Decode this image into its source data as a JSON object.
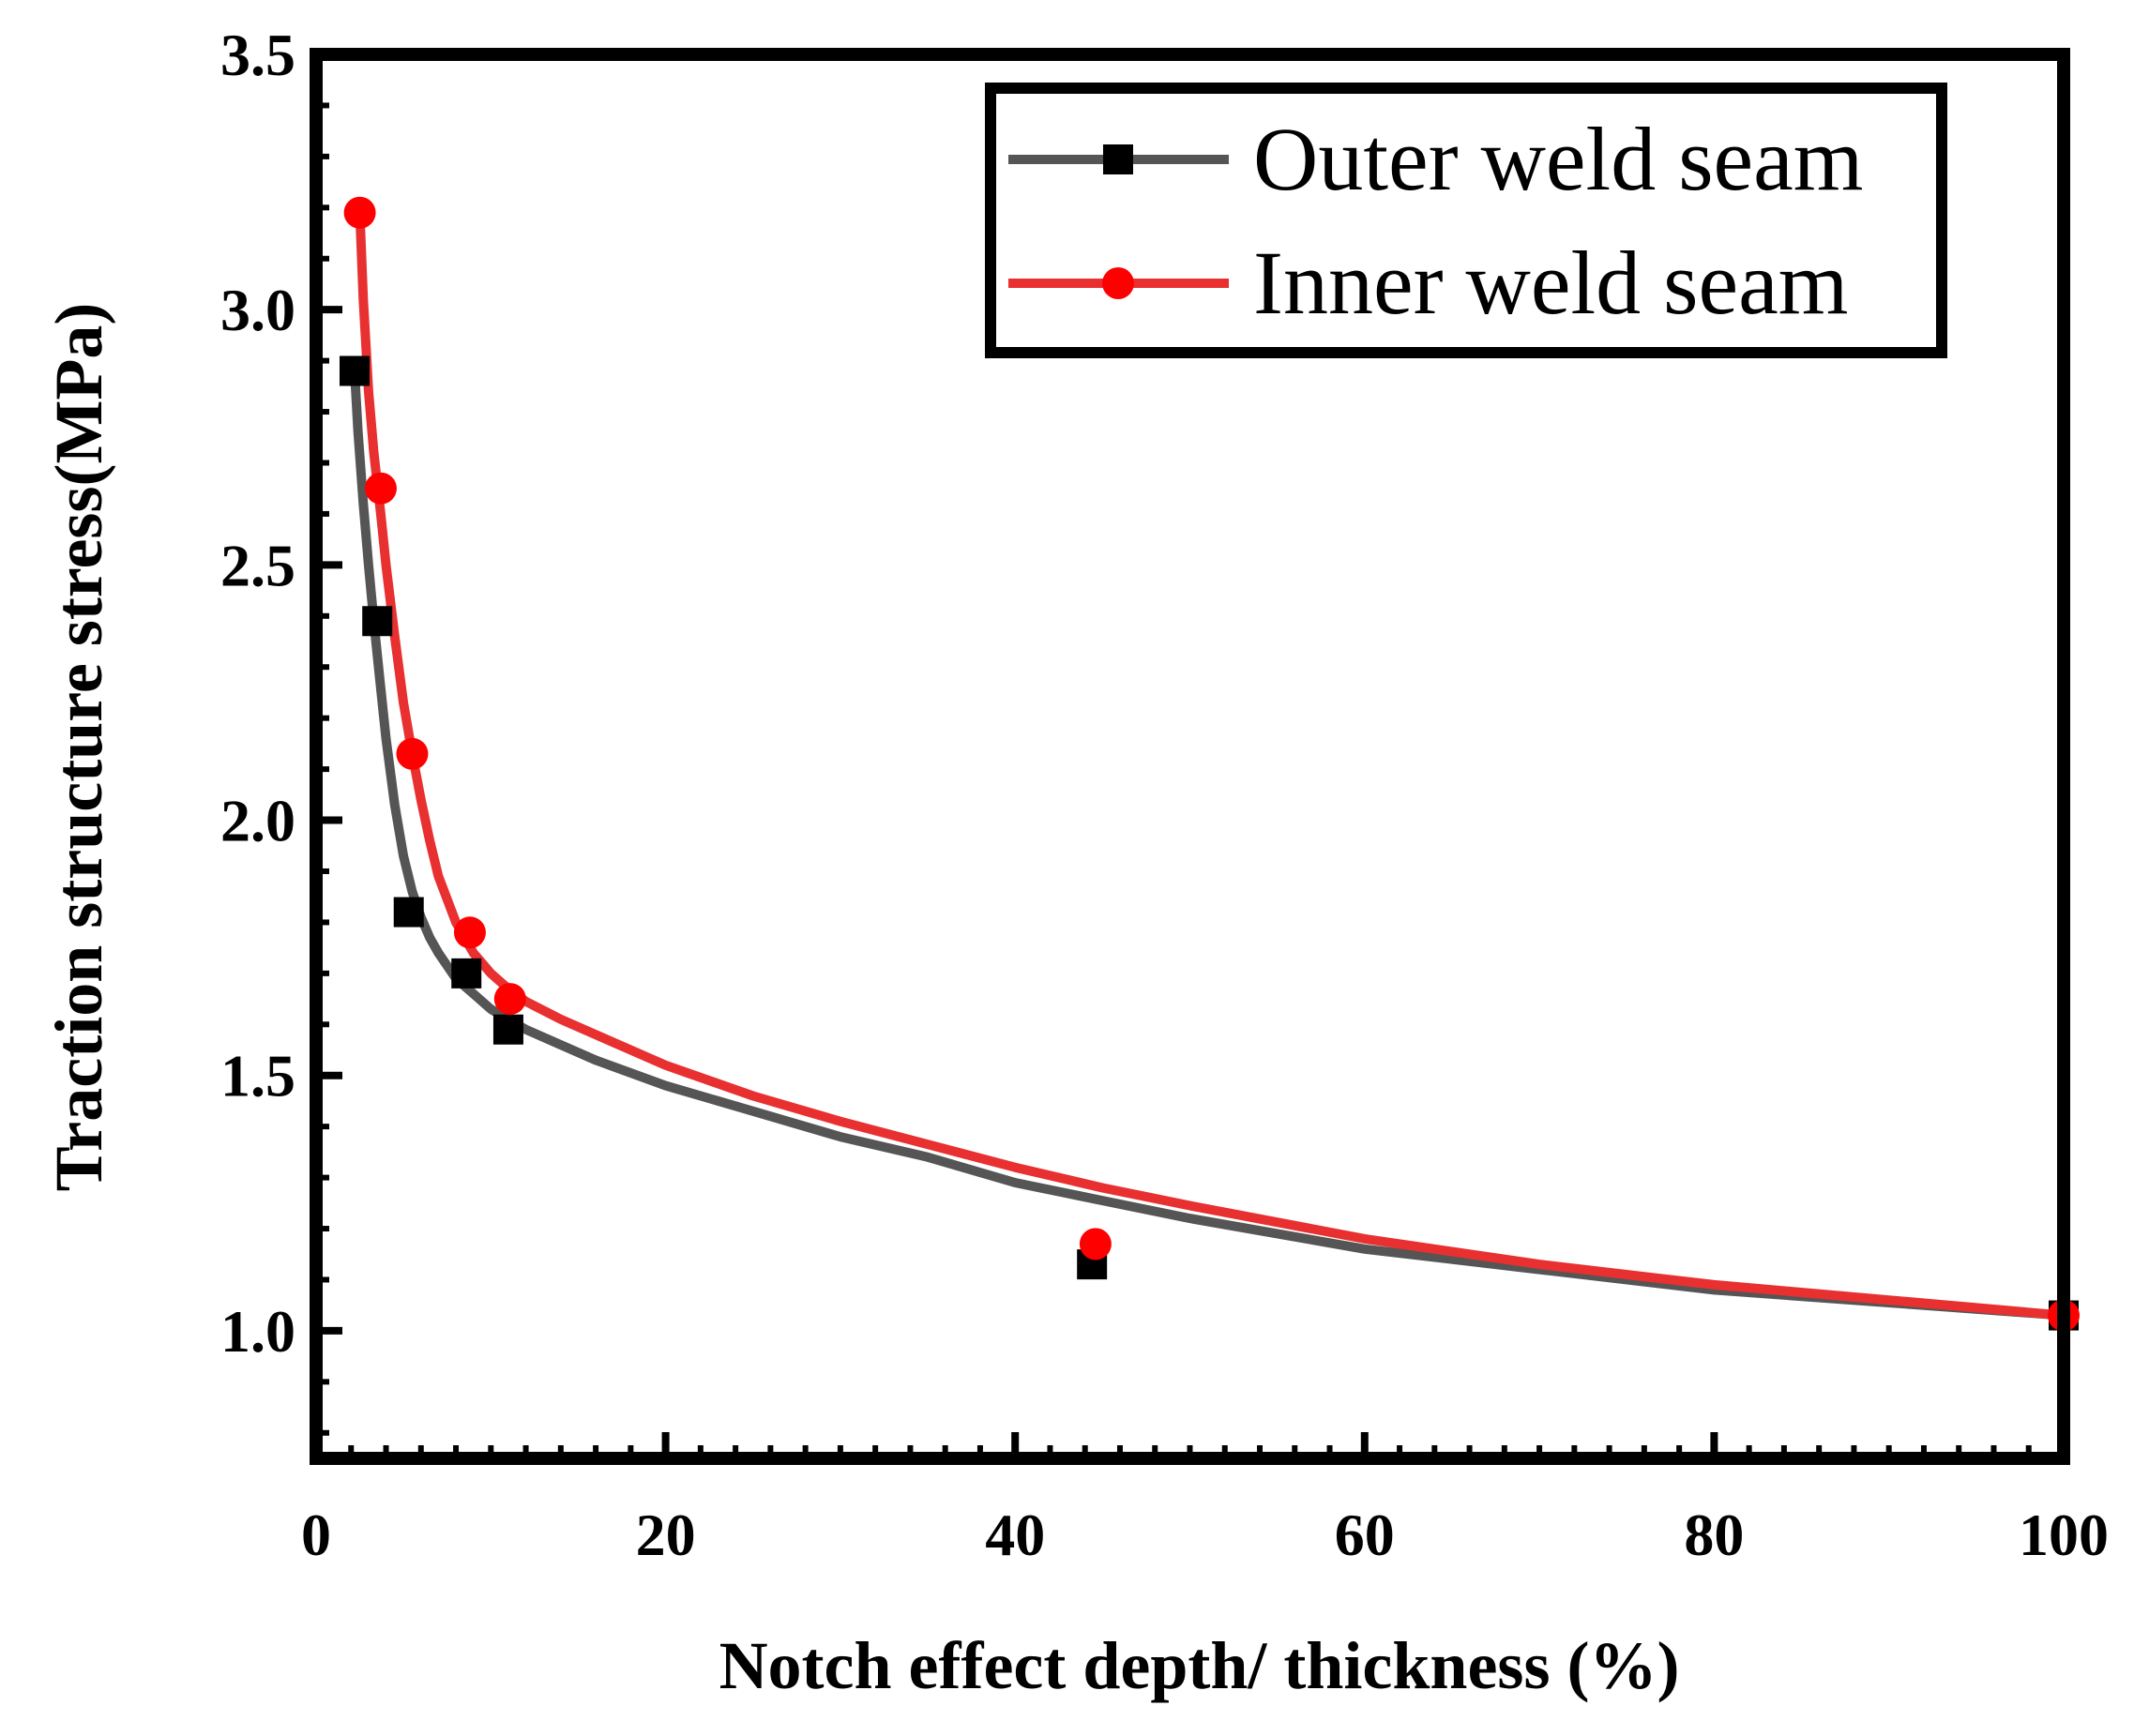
{
  "chart_data": {
    "type": "line",
    "title": "",
    "xlabel": "Notch effect depth/ thickness (%)",
    "ylabel": "Traction structure stress(MPa)",
    "xlim": [
      0,
      100
    ],
    "ylim": [
      0.75,
      3.5
    ],
    "xticks": [
      0,
      20,
      40,
      60,
      80,
      100
    ],
    "xtick_labels": [
      "0",
      "20",
      "40",
      "60",
      "80",
      "100"
    ],
    "yticks": [
      1.0,
      1.5,
      2.0,
      2.5,
      3.0,
      3.5
    ],
    "ytick_labels": [
      "1.0",
      "1.5",
      "2.0",
      "2.5",
      "3.0",
      "3.5"
    ],
    "legend_position": "top-right",
    "series": [
      {
        "name": "Outer weld seam",
        "color": "#000000",
        "line_color": "#555555",
        "marker": "square",
        "x": [
          2.2,
          3.5,
          5.3,
          8.6,
          11.0,
          44.4,
          100.0
        ],
        "values": [
          2.88,
          2.39,
          1.82,
          1.7,
          1.59,
          1.13,
          1.03
        ],
        "fit_x": [
          2.2,
          2.4,
          2.7,
          3.0,
          3.3,
          3.6,
          4.0,
          4.5,
          5.0,
          5.5,
          6.0,
          6.5,
          7.0,
          8.0,
          9.0,
          10.0,
          11.0,
          12.0,
          14.0,
          16.0,
          20.0,
          25.0,
          30.0,
          35.0,
          40.0,
          45.0,
          50.0,
          60.0,
          70.0,
          80.0,
          90.0,
          100.0
        ],
        "fit_y": [
          2.88,
          2.76,
          2.62,
          2.5,
          2.39,
          2.29,
          2.16,
          2.03,
          1.93,
          1.86,
          1.81,
          1.77,
          1.74,
          1.69,
          1.66,
          1.63,
          1.61,
          1.59,
          1.56,
          1.53,
          1.48,
          1.43,
          1.38,
          1.34,
          1.29,
          1.255,
          1.22,
          1.16,
          1.12,
          1.08,
          1.055,
          1.03
        ]
      },
      {
        "name": "Inner weld seam",
        "color": "#ff0000",
        "line_color": "#e83030",
        "marker": "circle",
        "x": [
          2.5,
          3.7,
          5.5,
          8.8,
          11.1,
          44.6,
          100.0
        ],
        "values": [
          3.19,
          2.65,
          2.13,
          1.78,
          1.65,
          1.17,
          1.03
        ],
        "fit_x": [
          2.5,
          2.7,
          3.0,
          3.3,
          3.7,
          4.0,
          4.5,
          5.0,
          5.5,
          6.0,
          6.5,
          7.0,
          8.0,
          9.0,
          10.0,
          11.0,
          12.0,
          14.0,
          16.0,
          20.0,
          25.0,
          30.0,
          35.0,
          40.0,
          45.0,
          50.0,
          60.0,
          70.0,
          80.0,
          90.0,
          100.0
        ],
        "fit_y": [
          3.19,
          3.02,
          2.84,
          2.72,
          2.6,
          2.5,
          2.36,
          2.23,
          2.13,
          2.04,
          1.96,
          1.89,
          1.8,
          1.74,
          1.7,
          1.67,
          1.645,
          1.61,
          1.58,
          1.52,
          1.46,
          1.41,
          1.365,
          1.32,
          1.28,
          1.245,
          1.18,
          1.13,
          1.09,
          1.06,
          1.03
        ]
      }
    ]
  }
}
